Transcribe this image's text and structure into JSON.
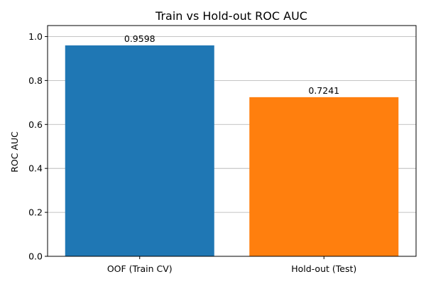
{
  "chart_data": {
    "type": "bar",
    "title": "Train vs Hold-out ROC AUC",
    "xlabel": "",
    "ylabel": "ROC AUC",
    "categories": [
      "OOF (Train CV)",
      "Hold-out (Test)"
    ],
    "values": [
      0.9598,
      0.7241
    ],
    "value_labels": [
      "0.9598",
      "0.7241"
    ],
    "colors": [
      "#1f77b4",
      "#ff7f0e"
    ],
    "ylim": [
      0,
      1.05
    ],
    "yticks": [
      0.0,
      0.2,
      0.4,
      0.6,
      0.8,
      1.0
    ],
    "ytick_labels": [
      "0.0",
      "0.2",
      "0.4",
      "0.6",
      "0.8",
      "1.0"
    ],
    "grid": "y",
    "legend": "none"
  }
}
